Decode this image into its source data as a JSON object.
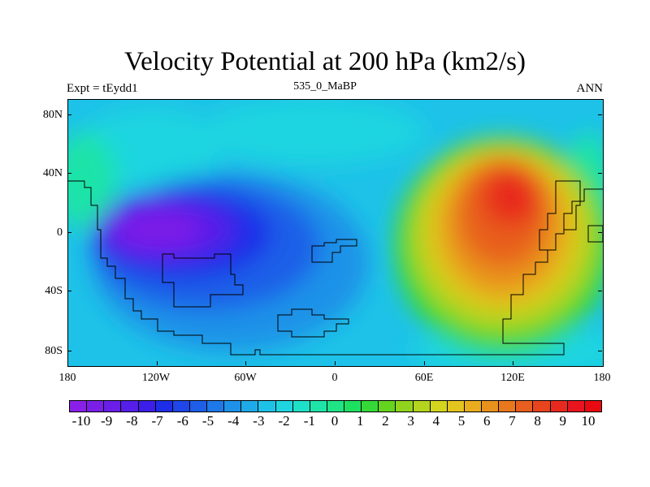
{
  "chart_data": {
    "type": "heatmap",
    "title": "Velocity Potential at 200 hPa (km2/s)",
    "subtitle_left": "Expt = tEydd1",
    "subtitle_center": "535_0_MaBP",
    "subtitle_right": "ANN",
    "x_ticks": [
      "180",
      "120W",
      "60W",
      "0",
      "60E",
      "120E",
      "180"
    ],
    "y_ticks": [
      "80N",
      "40N",
      "0",
      "40S",
      "80S"
    ],
    "xlim": [
      -180,
      180
    ],
    "ylim": [
      -90,
      90
    ],
    "colorbar_labels": [
      "-10",
      "-9",
      "-8",
      "-7",
      "-6",
      "-5",
      "-4",
      "-3",
      "-2",
      "-1",
      "0",
      "1",
      "2",
      "3",
      "4",
      "5",
      "6",
      "7",
      "8",
      "9",
      "10"
    ],
    "colorbar_range": [
      -10,
      10
    ],
    "minimum": {
      "lon": -125,
      "lat": 2,
      "value": -9.5
    },
    "maximum": {
      "lon": 120,
      "lat": 15,
      "value": 8.5
    },
    "colors": [
      "#8a20e8",
      "#7b1fe8",
      "#6a1ee8",
      "#561ee8",
      "#3d1ee8",
      "#1e2de8",
      "#1e46e8",
      "#1e5fe8",
      "#1e79e8",
      "#1e92e8",
      "#1eaae8",
      "#1ec2e8",
      "#1ed5e0",
      "#1ee0c8",
      "#1ee4a8",
      "#1ee486",
      "#1ee060",
      "#36d838",
      "#64d41e",
      "#90d41e",
      "#b4d41e",
      "#d2d41e",
      "#e4c41e",
      "#e8ac1e",
      "#e8921e",
      "#e8781e",
      "#e85e1e",
      "#e8441e",
      "#e82a1e",
      "#e8141e",
      "#e80a10"
    ]
  }
}
